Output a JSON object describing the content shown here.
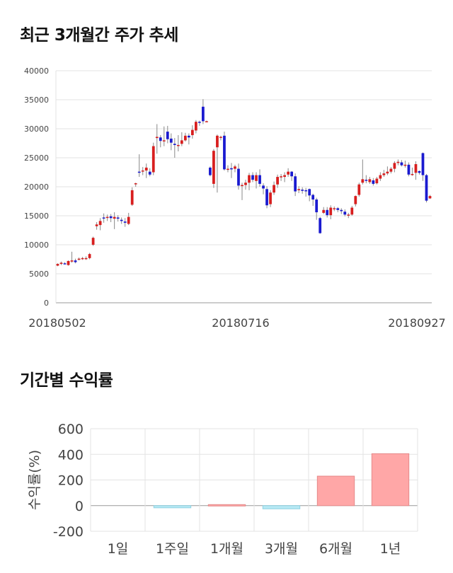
{
  "sections": {
    "price_title": "최근 3개월간 주가 추세",
    "returns_title": "기간별 수익률"
  },
  "chart_data": [
    {
      "type": "candlestick",
      "title": "최근 3개월간 주가 추세",
      "ylim": [
        0,
        40000
      ],
      "y_ticks": [
        0,
        5000,
        10000,
        15000,
        20000,
        25000,
        30000,
        35000,
        40000
      ],
      "x_tick_labels": [
        "20180502",
        "20180716",
        "20180927"
      ],
      "grid": true,
      "up_color": "#d81e1e",
      "down_color": "#1a1ad0",
      "candles": [
        [
          6400,
          6700,
          6300,
          6800
        ],
        [
          6700,
          6900,
          6500,
          7100
        ],
        [
          6800,
          6700,
          6600,
          7000
        ],
        [
          6500,
          7200,
          6400,
          7300
        ],
        [
          7100,
          7300,
          6900,
          8800
        ],
        [
          7300,
          7000,
          6800,
          7600
        ],
        [
          7500,
          7600,
          7300,
          7800
        ],
        [
          7600,
          7700,
          7400,
          7900
        ],
        [
          7600,
          7700,
          7400,
          8000
        ],
        [
          7700,
          8400,
          7500,
          8600
        ],
        [
          10000,
          11200,
          9800,
          11400
        ],
        [
          13200,
          13500,
          12600,
          13900
        ],
        [
          13400,
          14100,
          12500,
          14600
        ],
        [
          14700,
          14600,
          13800,
          15400
        ],
        [
          14700,
          14800,
          14100,
          15200
        ],
        [
          14900,
          14600,
          13900,
          15300
        ],
        [
          14500,
          14800,
          12700,
          15600
        ],
        [
          14700,
          14500,
          14000,
          15100
        ],
        [
          14300,
          14100,
          13600,
          14700
        ],
        [
          14000,
          13800,
          13100,
          14600
        ],
        [
          13600,
          14800,
          13400,
          15500
        ],
        [
          16900,
          19400,
          16700,
          19900
        ],
        [
          20500,
          20600,
          20000,
          20700
        ],
        [
          22600,
          22500,
          21700,
          25600
        ],
        [
          22700,
          22800,
          22000,
          23400
        ],
        [
          22800,
          23300,
          21500,
          24000
        ],
        [
          22600,
          22100,
          21800,
          23200
        ],
        [
          22500,
          27000,
          22000,
          27600
        ],
        [
          28400,
          28600,
          25700,
          30800
        ],
        [
          28500,
          27900,
          26800,
          28900
        ],
        [
          28000,
          28000,
          27000,
          30400
        ],
        [
          29500,
          28200,
          27500,
          30500
        ],
        [
          28300,
          27600,
          26300,
          29200
        ],
        [
          27400,
          27200,
          25000,
          28400
        ],
        [
          27100,
          27200,
          26100,
          28900
        ],
        [
          27400,
          28000,
          27000,
          29400
        ],
        [
          28000,
          28800,
          27800,
          29300
        ],
        [
          28800,
          28500,
          27300,
          29200
        ],
        [
          28900,
          29800,
          28300,
          30600
        ],
        [
          29700,
          31200,
          29200,
          31500
        ],
        [
          31200,
          31100,
          30500,
          31400
        ],
        [
          33800,
          31300,
          30800,
          35100
        ],
        [
          31300,
          31300,
          31200,
          31400
        ],
        [
          23300,
          22000,
          21800,
          23500
        ],
        [
          20500,
          26200,
          19800,
          26500
        ],
        [
          26800,
          28800,
          19000,
          29000
        ],
        [
          28500,
          28600,
          28000,
          28800
        ],
        [
          28800,
          23000,
          22800,
          29500
        ],
        [
          23000,
          23100,
          22500,
          23700
        ],
        [
          23200,
          23000,
          21500,
          24100
        ],
        [
          23100,
          23500,
          22500,
          23800
        ],
        [
          23100,
          20200,
          19500,
          24000
        ],
        [
          20300,
          20300,
          17700,
          20700
        ],
        [
          20300,
          20700,
          19500,
          21200
        ],
        [
          20700,
          22000,
          19400,
          22400
        ],
        [
          22000,
          21200,
          20800,
          22500
        ],
        [
          21000,
          22000,
          19700,
          22500
        ],
        [
          22000,
          20500,
          20000,
          23000
        ],
        [
          20200,
          19700,
          18700,
          20600
        ],
        [
          19600,
          16800,
          16300,
          20100
        ],
        [
          17000,
          19000,
          16500,
          19400
        ],
        [
          19000,
          20300,
          18600,
          20900
        ],
        [
          20400,
          21700,
          19800,
          22100
        ],
        [
          21700,
          21800,
          21000,
          22200
        ],
        [
          21700,
          22000,
          20800,
          22500
        ],
        [
          22100,
          22600,
          21700,
          23200
        ],
        [
          22600,
          21800,
          21000,
          22700
        ],
        [
          21800,
          19200,
          18400,
          22300
        ],
        [
          19400,
          19600,
          18900,
          20100
        ],
        [
          19500,
          19300,
          18800,
          19900
        ],
        [
          19400,
          19300,
          18300,
          19800
        ],
        [
          19600,
          18500,
          17500,
          19700
        ],
        [
          18600,
          17800,
          16700,
          18800
        ],
        [
          17800,
          15600,
          14300,
          18100
        ],
        [
          14600,
          12000,
          11900,
          14800
        ],
        [
          15500,
          16000,
          15300,
          16500
        ],
        [
          16000,
          15100,
          14700,
          16500
        ],
        [
          15100,
          16400,
          14400,
          16800
        ],
        [
          16300,
          16300,
          15800,
          16600
        ],
        [
          16300,
          16000,
          15600,
          16500
        ],
        [
          16000,
          15800,
          15300,
          16300
        ],
        [
          15700,
          15200,
          14900,
          16100
        ],
        [
          15100,
          15200,
          14600,
          15500
        ],
        [
          15200,
          16400,
          15000,
          16700
        ],
        [
          17000,
          18400,
          16600,
          18500
        ],
        [
          18600,
          20400,
          18300,
          20700
        ],
        [
          20700,
          21300,
          20400,
          24700
        ],
        [
          21200,
          21100,
          20600,
          22000
        ],
        [
          20800,
          21300,
          20500,
          21700
        ],
        [
          21100,
          20500,
          20200,
          21500
        ],
        [
          20600,
          21400,
          20400,
          21700
        ],
        [
          21400,
          22000,
          21000,
          22500
        ],
        [
          22000,
          22300,
          21700,
          22900
        ],
        [
          22300,
          22600,
          22000,
          23500
        ],
        [
          22600,
          23100,
          22300,
          23400
        ],
        [
          23100,
          24100,
          22500,
          24400
        ],
        [
          24100,
          24300,
          23700,
          24700
        ],
        [
          24200,
          23700,
          23500,
          24600
        ],
        [
          23700,
          23800,
          23300,
          24500
        ],
        [
          23800,
          22100,
          21800,
          24200
        ],
        [
          22200,
          22200,
          21900,
          23300
        ],
        [
          22400,
          23900,
          21200,
          24400
        ],
        [
          22700,
          22400,
          22100,
          22800
        ],
        [
          25800,
          22000,
          21000,
          25900
        ],
        [
          22000,
          17600,
          17300,
          22200
        ],
        [
          18000,
          18400,
          17900,
          18600
        ]
      ]
    },
    {
      "type": "bar",
      "title": "기간별 수익률",
      "ylabel": "수익률(%)",
      "categories": [
        "1일",
        "1주일",
        "1개월",
        "3개월",
        "6개월",
        "1년"
      ],
      "values": [
        0,
        -17,
        8,
        -25,
        230,
        405
      ],
      "ylim": [
        -200,
        600
      ],
      "y_ticks": [
        -200,
        0,
        200,
        400,
        600
      ],
      "grid": true,
      "positive_color": "#ffa7a7",
      "negative_color": "#b7e9f4"
    }
  ]
}
